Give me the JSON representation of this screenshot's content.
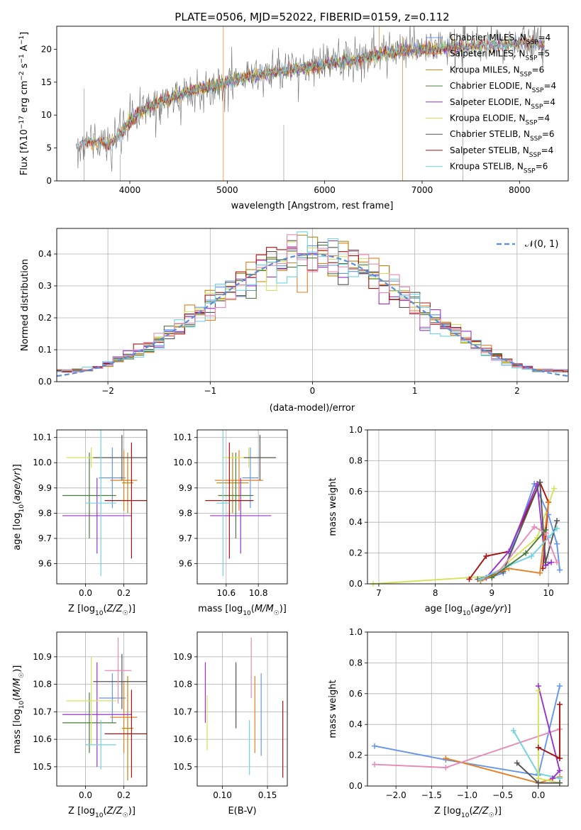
{
  "figure": {
    "title": "PLATE=0506, MJD=52022, FIBERID=0159, z=0.112"
  },
  "colors": {
    "Chabrier MILES": "#6495ED",
    "Salpeter MILES": "#E67E22",
    "Kroupa MILES": "#B8860B",
    "Chabrier ELODIE": "#4A7A3A",
    "Salpeter ELODIE": "#9932CC",
    "Kroupa ELODIE": "#D4E35A",
    "Chabrier STELIB": "#555555",
    "Salpeter STELIB": "#AA1111",
    "Kroupa STELIB": "#6FD3E0",
    "gaussian": "#5B8DD9",
    "pink_series": "#E68AB8"
  },
  "chart_data": [
    {
      "id": "spectrum",
      "type": "line",
      "xlabel": "wavelength [Angstrom, rest frame]",
      "xlim": [
        3250,
        8500
      ],
      "ylim": [
        0,
        23.5
      ],
      "xticks": [
        4000,
        5000,
        6000,
        7000,
        8000
      ],
      "yticks": [
        0,
        5,
        10,
        15,
        20
      ],
      "legend_position": "right",
      "legend": [
        {
          "model": "Chabrier MILES",
          "nssp": "4"
        },
        {
          "model": "Salpeter MILES",
          "nssp": "5"
        },
        {
          "model": "Kroupa MILES",
          "nssp": "6"
        },
        {
          "model": "Chabrier ELODIE",
          "nssp": "4"
        },
        {
          "model": "Salpeter ELODIE",
          "nssp": "4"
        },
        {
          "model": "Kroupa ELODIE",
          "nssp": "4"
        },
        {
          "model": "Chabrier STELIB",
          "nssp": "6"
        },
        {
          "model": "Salpeter STELIB",
          "nssp": "4"
        },
        {
          "model": "Kroupa STELIB",
          "nssp": "6"
        }
      ],
      "continuum": [
        [
          3400,
          5.5
        ],
        [
          3600,
          6.0
        ],
        [
          3800,
          5.5
        ],
        [
          3950,
          8.0
        ],
        [
          4100,
          10.5
        ],
        [
          4300,
          12.0
        ],
        [
          4500,
          13.0
        ],
        [
          4700,
          14.0
        ],
        [
          4900,
          14.5
        ],
        [
          5100,
          15.5
        ],
        [
          5300,
          16.0
        ],
        [
          5500,
          16.5
        ],
        [
          5700,
          17.0
        ],
        [
          5900,
          17.3
        ],
        [
          6100,
          18.0
        ],
        [
          6300,
          18.3
        ],
        [
          6500,
          19.0
        ],
        [
          6700,
          19.5
        ],
        [
          6900,
          19.8
        ],
        [
          7100,
          20.0
        ],
        [
          7300,
          20.3
        ],
        [
          7500,
          20.5
        ],
        [
          7700,
          20.5
        ],
        [
          7900,
          20.8
        ],
        [
          8100,
          21.0
        ],
        [
          8260,
          20.5
        ]
      ]
    },
    {
      "id": "residuals",
      "type": "histogram",
      "xlabel": "(data-model)/error",
      "ylabel": "Normed distribution",
      "xlim": [
        -2.5,
        2.5
      ],
      "ylim": [
        0,
        0.48
      ],
      "xticks": [
        -2,
        -1,
        0,
        1,
        2
      ],
      "yticks": [
        0.0,
        0.1,
        0.2,
        0.3,
        0.4
      ],
      "bin_width": 0.1,
      "legend_label": "𝒩(0, 1)",
      "legend_position": "top-right",
      "gaussian": {
        "mean": 0,
        "sigma": 1
      }
    },
    {
      "id": "age_vs_Z",
      "type": "errorbar",
      "xlabel": "Z [log10(Z/Z☉)]",
      "ylabel": "age  [log10(age/yr)]",
      "xlim": [
        -0.15,
        0.32
      ],
      "ylim": [
        9.52,
        10.13
      ],
      "xticks": [
        0.0,
        0.2
      ],
      "yticks": [
        9.6,
        9.7,
        9.8,
        9.9,
        10.0,
        10.1
      ],
      "points": [
        {
          "model": "Chabrier MILES",
          "x": 0.14,
          "xerr": 0.07,
          "y": 9.94,
          "yerr": 0.12
        },
        {
          "model": "Salpeter MILES",
          "x": 0.2,
          "xerr": 0.07,
          "y": 9.93,
          "yerr": 0.12
        },
        {
          "model": "Kroupa MILES",
          "x": 0.22,
          "xerr": 0.03,
          "y": 9.92,
          "yerr": 0.12
        },
        {
          "model": "Chabrier ELODIE",
          "x": 0.02,
          "xerr": 0.14,
          "y": 9.87,
          "yerr": 0.17
        },
        {
          "model": "Salpeter ELODIE",
          "x": 0.06,
          "xerr": 0.18,
          "y": 9.79,
          "yerr": 0.15
        },
        {
          "model": "Kroupa ELODIE",
          "x": 0.03,
          "xerr": 0.13,
          "y": 10.02,
          "yerr": 0.04
        },
        {
          "model": "Chabrier STELIB",
          "x": 0.19,
          "xerr": 0.15,
          "y": 10.02,
          "yerr": 0.09
        },
        {
          "model": "Salpeter STELIB",
          "x": 0.24,
          "xerr": 0.14,
          "y": 9.85,
          "yerr": 0.23
        },
        {
          "model": "Kroupa STELIB",
          "x": 0.08,
          "xerr": 0.08,
          "y": 9.84,
          "yerr": 0.29
        }
      ]
    },
    {
      "id": "age_vs_mass",
      "type": "errorbar",
      "xlabel": "mass [log10(M/M☉)]",
      "xlim": [
        10.42,
        10.98
      ],
      "ylim": [
        9.52,
        10.13
      ],
      "xticks": [
        10.6,
        10.8
      ],
      "yticks": [
        9.6,
        9.7,
        9.8,
        9.9,
        10.0,
        10.1
      ],
      "points": [
        {
          "model": "Chabrier MILES",
          "x": 10.75,
          "xerr": 0.05,
          "y": 9.94,
          "yerr": 0.12
        },
        {
          "model": "Salpeter MILES",
          "x": 10.68,
          "xerr": 0.15,
          "y": 9.93,
          "yerr": 0.12
        },
        {
          "model": "Kroupa MILES",
          "x": 10.64,
          "xerr": 0.1,
          "y": 9.92,
          "yerr": 0.12
        },
        {
          "model": "Chabrier ELODIE",
          "x": 10.66,
          "xerr": 0.11,
          "y": 9.87,
          "yerr": 0.17
        },
        {
          "model": "Salpeter ELODIE",
          "x": 10.69,
          "xerr": 0.19,
          "y": 9.79,
          "yerr": 0.15
        },
        {
          "model": "Kroupa ELODIE",
          "x": 10.74,
          "xerr": 0.16,
          "y": 10.02,
          "yerr": 0.04
        },
        {
          "model": "Chabrier STELIB",
          "x": 10.81,
          "xerr": 0.1,
          "y": 10.02,
          "yerr": 0.09
        },
        {
          "model": "Salpeter STELIB",
          "x": 10.62,
          "xerr": 0.15,
          "y": 9.85,
          "yerr": 0.23
        },
        {
          "model": "Kroupa STELIB",
          "x": 10.58,
          "xerr": 0.04,
          "y": 9.84,
          "yerr": 0.29
        }
      ]
    },
    {
      "id": "weight_vs_age",
      "type": "line",
      "xlabel": "age  [log10(age/yr)]",
      "ylabel": "mass weight",
      "xlim": [
        6.8,
        10.35
      ],
      "ylim": [
        0,
        1.0
      ],
      "xticks": [
        7,
        8,
        9,
        10
      ],
      "yticks": [
        0.0,
        0.2,
        0.4,
        0.6,
        0.8,
        1.0
      ],
      "series": [
        {
          "model": "Kroupa ELODIE",
          "points": [
            [
              6.9,
              0.0
            ],
            [
              9.0,
              0.05
            ],
            [
              9.8,
              0.3
            ],
            [
              10.1,
              0.62
            ]
          ]
        },
        {
          "model": "Salpeter STELIB",
          "points": [
            [
              8.6,
              0.03
            ],
            [
              8.9,
              0.18
            ],
            [
              9.3,
              0.21
            ],
            [
              9.85,
              0.66
            ],
            [
              10.0,
              0.53
            ],
            [
              9.9,
              0.1
            ]
          ]
        },
        {
          "model": "Chabrier MILES",
          "points": [
            [
              8.8,
              0.02
            ],
            [
              9.2,
              0.07
            ],
            [
              9.75,
              0.65
            ],
            [
              10.0,
              0.45
            ],
            [
              10.15,
              0.26
            ],
            [
              10.2,
              0.09
            ]
          ]
        },
        {
          "model": "Salpeter ELODIE",
          "points": [
            [
              8.9,
              0.04
            ],
            [
              9.3,
              0.21
            ],
            [
              9.8,
              0.65
            ],
            [
              9.95,
              0.12
            ],
            [
              10.05,
              0.14
            ]
          ]
        },
        {
          "model": "Chabrier STELIB",
          "points": [
            [
              8.75,
              0.03
            ],
            [
              9.2,
              0.08
            ],
            [
              9.85,
              0.66
            ],
            [
              9.95,
              0.14
            ],
            [
              10.15,
              0.41
            ]
          ]
        },
        {
          "model": "Salpeter MILES",
          "points": [
            [
              8.8,
              0.02
            ],
            [
              9.3,
              0.1
            ],
            [
              9.85,
              0.07
            ],
            [
              10.0,
              0.53
            ]
          ]
        },
        {
          "model": "Kroupa STELIB",
          "points": [
            [
              8.8,
              0.03
            ],
            [
              9.3,
              0.12
            ],
            [
              9.7,
              0.18
            ],
            [
              10.0,
              0.3
            ],
            [
              10.15,
              0.36
            ]
          ]
        },
        {
          "model": "Pink",
          "points": [
            [
              9.1,
              0.07
            ],
            [
              9.75,
              0.37
            ],
            [
              9.95,
              0.33
            ],
            [
              10.15,
              0.14
            ]
          ]
        },
        {
          "model": "Chabrier ELODIE",
          "points": [
            [
              9.0,
              0.04
            ],
            [
              9.6,
              0.2
            ],
            [
              9.95,
              0.35
            ]
          ]
        }
      ]
    },
    {
      "id": "mass_vs_Z",
      "type": "errorbar",
      "xlabel": "Z [log10(Z/Z☉)]",
      "ylabel": "mass [log10(M/M☉)]",
      "xlim": [
        -0.15,
        0.32
      ],
      "ylim": [
        10.43,
        10.99
      ],
      "xticks": [
        0.0,
        0.2
      ],
      "yticks": [
        10.5,
        10.6,
        10.7,
        10.8,
        10.9
      ],
      "points": [
        {
          "model": "Chabrier MILES",
          "x": 0.14,
          "xerr": 0.07,
          "y": 10.75,
          "yerr": 0.09
        },
        {
          "model": "Salpeter MILES",
          "x": 0.2,
          "xerr": 0.07,
          "y": 10.68,
          "yerr": 0.13
        },
        {
          "model": "Kroupa MILES",
          "x": 0.22,
          "xerr": 0.03,
          "y": 10.64,
          "yerr": 0.19
        },
        {
          "model": "Chabrier ELODIE",
          "x": 0.02,
          "xerr": 0.14,
          "y": 10.66,
          "yerr": 0.11
        },
        {
          "model": "Salpeter ELODIE",
          "x": 0.06,
          "xerr": 0.18,
          "y": 10.69,
          "yerr": 0.19
        },
        {
          "model": "Kroupa ELODIE",
          "x": 0.03,
          "xerr": 0.13,
          "y": 10.74,
          "yerr": 0.16
        },
        {
          "model": "Chabrier STELIB",
          "x": 0.19,
          "xerr": 0.15,
          "y": 10.81,
          "yerr": 0.1
        },
        {
          "model": "Salpeter STELIB",
          "x": 0.24,
          "xerr": 0.14,
          "y": 10.62,
          "yerr": 0.16
        },
        {
          "model": "Kroupa STELIB",
          "x": 0.08,
          "xerr": 0.08,
          "y": 10.58,
          "yerr": 0.09
        },
        {
          "model": "Pink",
          "x": 0.17,
          "xerr": 0.07,
          "y": 10.85,
          "yerr": 0.12
        }
      ]
    },
    {
      "id": "mass_vs_EBV",
      "type": "errorbar",
      "xlabel": "E(B-V)",
      "xlim": [
        0.072,
        0.172
      ],
      "ylim": [
        10.43,
        10.99
      ],
      "xticks": [
        0.1,
        0.15
      ],
      "yticks": [
        10.5,
        10.6,
        10.7,
        10.8,
        10.9
      ],
      "points": [
        {
          "model": "Salpeter ELODIE",
          "x": 0.081,
          "y": 10.77,
          "yerr": 0.11
        },
        {
          "model": "Kroupa ELODIE",
          "x": 0.083,
          "y": 10.66,
          "yerr": 0.1
        },
        {
          "model": "Chabrier STELIB",
          "x": 0.115,
          "y": 10.76,
          "yerr": 0.12
        },
        {
          "model": "Kroupa STELIB",
          "x": 0.13,
          "y": 10.57,
          "yerr": 0.1
        },
        {
          "model": "Pink",
          "x": 0.132,
          "y": 10.86,
          "yerr": 0.11
        },
        {
          "model": "Salpeter MILES",
          "x": 0.136,
          "y": 10.69,
          "yerr": 0.14
        },
        {
          "model": "Chabrier MILES",
          "x": 0.143,
          "y": 10.69,
          "yerr": 0.15
        },
        {
          "model": "Salpeter STELIB",
          "x": 0.167,
          "y": 10.6,
          "yerr": 0.14
        }
      ]
    },
    {
      "id": "weight_vs_Z",
      "type": "line",
      "xlabel": "Z [log10(Z/Z☉)]",
      "ylabel": "mass weight",
      "xlim": [
        -2.4,
        0.42
      ],
      "ylim": [
        0,
        1.0
      ],
      "xticks": [
        -2.0,
        -1.5,
        -1.0,
        -0.5,
        0.0
      ],
      "yticks": [
        0.0,
        0.2,
        0.4,
        0.6,
        0.8,
        1.0
      ],
      "series": [
        {
          "model": "Chabrier MILES",
          "points": [
            [
              -2.3,
              0.26
            ],
            [
              -1.3,
              0.17
            ],
            [
              0.0,
              0.07
            ],
            [
              0.3,
              0.65
            ]
          ]
        },
        {
          "model": "Salpeter MILES",
          "points": [
            [
              -1.3,
              0.18
            ],
            [
              0.0,
              0.02
            ],
            [
              0.3,
              0.06
            ]
          ]
        },
        {
          "model": "Pink",
          "points": [
            [
              -2.3,
              0.14
            ],
            [
              -1.3,
              0.12
            ],
            [
              0.3,
              0.37
            ]
          ]
        },
        {
          "model": "Kroupa STELIB",
          "points": [
            [
              -0.35,
              0.36
            ],
            [
              0.0,
              0.08
            ],
            [
              0.3,
              0.05
            ]
          ]
        },
        {
          "model": "Salpeter ELODIE",
          "points": [
            [
              0.0,
              0.65
            ],
            [
              0.3,
              0.1
            ],
            [
              0.2,
              0.05
            ]
          ]
        },
        {
          "model": "Kroupa ELODIE",
          "points": [
            [
              0.0,
              0.62
            ],
            [
              0.0,
              0.05
            ],
            [
              0.3,
              0.02
            ]
          ]
        },
        {
          "model": "Salpeter STELIB",
          "points": [
            [
              0.0,
              0.25
            ],
            [
              0.3,
              0.18
            ],
            [
              0.3,
              0.53
            ]
          ]
        },
        {
          "model": "Chabrier STELIB",
          "points": [
            [
              -0.3,
              0.15
            ],
            [
              0.0,
              0.02
            ],
            [
              0.3,
              0.02
            ]
          ]
        }
      ]
    }
  ]
}
